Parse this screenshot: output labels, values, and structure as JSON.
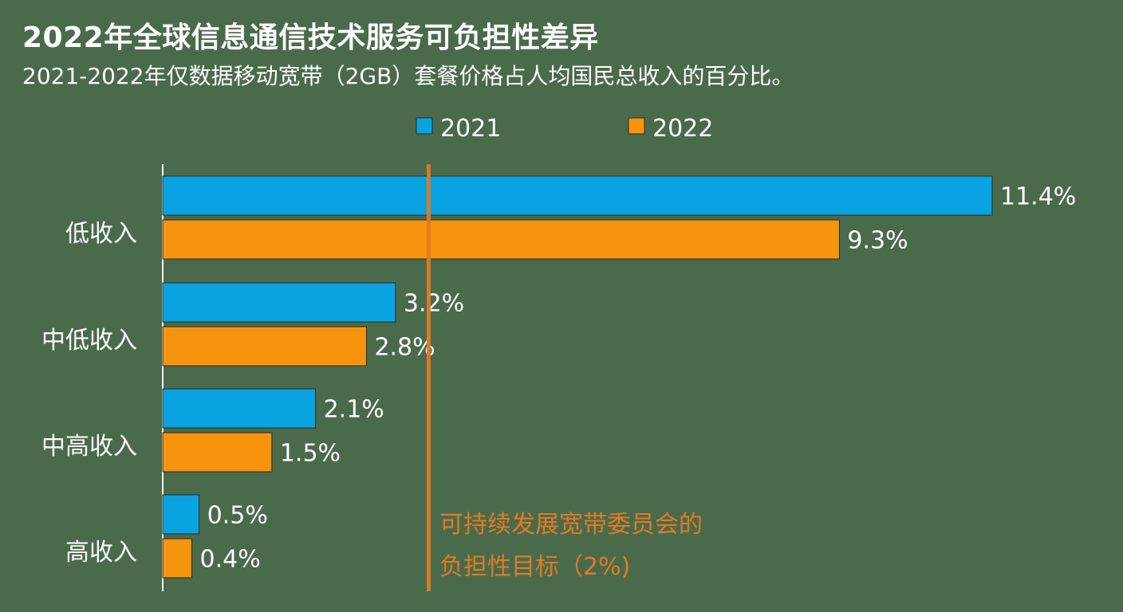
{
  "title": "2022年全球信息通信技术服务可负担性差异",
  "subtitle": "2021-2022年仅数据移动宽带（2GB）套餐价格占人均国民总收入的百分比。",
  "colors": {
    "background": "#4a6b4b",
    "series_2021": "#0aa3e2",
    "series_2022": "#f7940e",
    "target_line": "#e07a25",
    "bar_border": "#2a2a2a"
  },
  "chart_data": {
    "type": "bar",
    "orientation": "horizontal",
    "categories": [
      "低收入",
      "中低收入",
      "中高收入",
      "高收入"
    ],
    "series": [
      {
        "name": "2021",
        "values": [
          11.4,
          3.2,
          2.1,
          0.5
        ],
        "labels": [
          "11.4%",
          "3.2%",
          "2.1%",
          "0.5%"
        ]
      },
      {
        "name": "2022",
        "values": [
          9.3,
          2.8,
          1.5,
          0.4
        ],
        "labels": [
          "9.3%",
          "2.8%",
          "1.5%",
          "0.4%"
        ]
      }
    ],
    "xlim": [
      0,
      11.4
    ],
    "grid": false,
    "legend_position": "top",
    "reference_line": {
      "value": 2,
      "label_lines": [
        "可持续发展宽带委员会的",
        "负担性目标（2%)"
      ]
    }
  }
}
